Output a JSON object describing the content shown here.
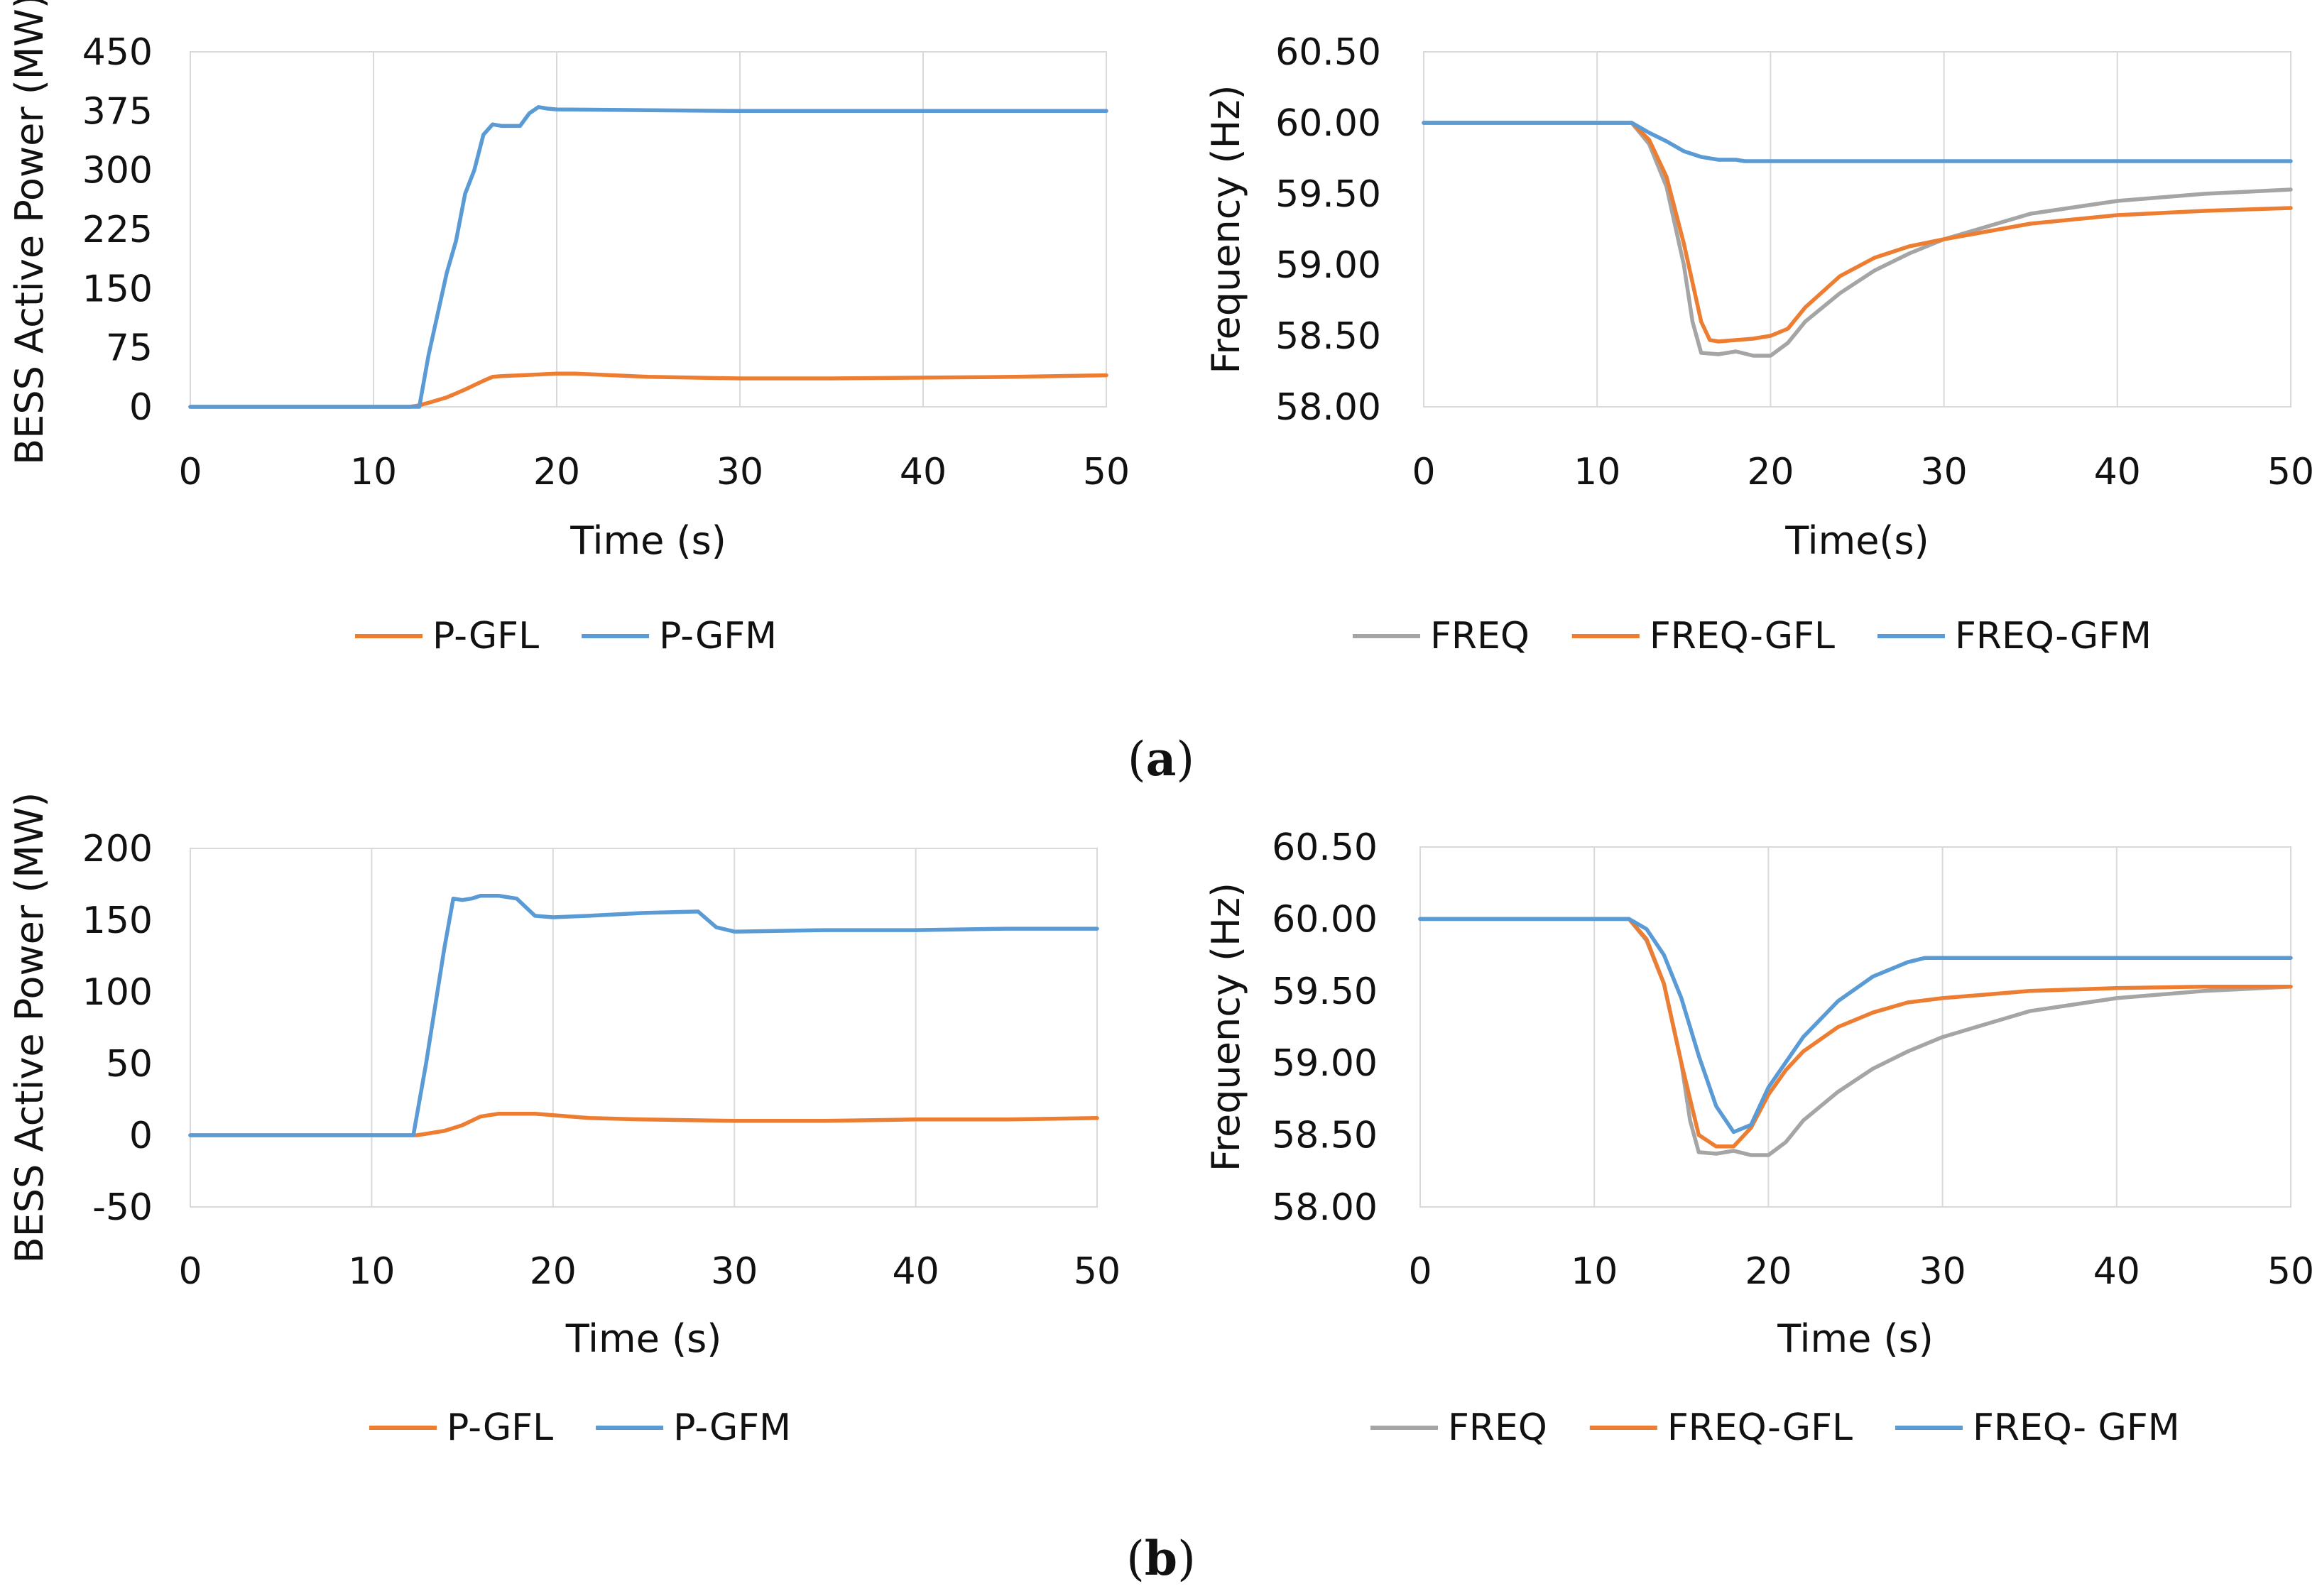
{
  "figure": {
    "panel_labels": [
      {
        "open": "(",
        "letter": "a",
        "close": ")"
      },
      {
        "open": "(",
        "letter": "b",
        "close": ")"
      }
    ]
  },
  "chart_data": [
    {
      "id": "a-power",
      "panel": "a",
      "type": "line",
      "xlabel": "Time (s)",
      "ylabel": "BESS Active Power (MW)",
      "xlim": [
        0,
        50
      ],
      "ylim": [
        0,
        450
      ],
      "xticks": [
        0,
        10,
        20,
        30,
        40,
        50
      ],
      "yticks": [
        0,
        75,
        150,
        225,
        300,
        375,
        450
      ],
      "ytick_labels": [
        "0",
        "75",
        "150",
        "225",
        "300",
        "375",
        "450"
      ],
      "grid": "vertical",
      "legend_position": "bottom",
      "series": [
        {
          "name": "P-GFL",
          "color": "#ED7D31",
          "x": [
            0,
            12,
            12.5,
            13,
            14,
            15,
            16,
            16.5,
            17,
            18,
            20,
            21,
            22,
            25,
            30,
            35,
            40,
            45,
            50
          ],
          "y": [
            0,
            0,
            2,
            5,
            12,
            22,
            33,
            38,
            39,
            40,
            42,
            42,
            41,
            38,
            36,
            36,
            37,
            38,
            40
          ]
        },
        {
          "name": "P-GFM",
          "color": "#5B9BD5",
          "x": [
            0,
            12.5,
            13,
            14,
            14.5,
            15,
            15.5,
            16,
            16.5,
            17,
            18,
            18.5,
            19,
            19.5,
            20,
            25,
            30,
            40,
            50
          ],
          "y": [
            0,
            0,
            65,
            170,
            210,
            270,
            300,
            345,
            358,
            356,
            356,
            372,
            380,
            378,
            377,
            376,
            375,
            375,
            375
          ]
        }
      ]
    },
    {
      "id": "a-freq",
      "panel": "a",
      "type": "line",
      "xlabel": "Time(s)",
      "ylabel": "Frequency (Hz)",
      "xlim": [
        0,
        50
      ],
      "ylim": [
        58,
        60.5
      ],
      "xticks": [
        0,
        10,
        20,
        30,
        40,
        50
      ],
      "yticks": [
        58,
        58.5,
        59,
        59.5,
        60,
        60.5
      ],
      "ytick_labels": [
        "58.00",
        "58.50",
        "59.00",
        "59.50",
        "60.00",
        "60.50"
      ],
      "grid": "vertical",
      "legend_position": "bottom",
      "series": [
        {
          "name": "FREQ",
          "color": "#A5A5A5",
          "x": [
            0,
            12,
            13,
            14,
            15,
            15.5,
            16,
            17,
            18,
            19,
            20,
            21,
            22,
            24,
            26,
            28,
            30,
            35,
            40,
            45,
            50
          ],
          "y": [
            60,
            60,
            59.85,
            59.55,
            59.0,
            58.6,
            58.38,
            58.37,
            58.39,
            58.36,
            58.36,
            58.45,
            58.6,
            58.8,
            58.96,
            59.08,
            59.18,
            59.36,
            59.45,
            59.5,
            59.53
          ]
        },
        {
          "name": "FREQ-GFL",
          "color": "#ED7D31",
          "x": [
            0,
            12,
            13,
            14,
            15,
            16,
            16.5,
            17,
            18,
            19,
            20,
            21,
            22,
            24,
            26,
            28,
            30,
            35,
            40,
            45,
            50
          ],
          "y": [
            60,
            60,
            59.88,
            59.62,
            59.15,
            58.6,
            58.47,
            58.46,
            58.47,
            58.48,
            58.5,
            58.55,
            58.7,
            58.92,
            59.05,
            59.13,
            59.18,
            59.29,
            59.35,
            59.38,
            59.4
          ]
        },
        {
          "name": "FREQ-GFM",
          "color": "#5B9BD5",
          "x": [
            0,
            12,
            13,
            14,
            15,
            16,
            17,
            18,
            18.5,
            19,
            20,
            30,
            40,
            50
          ],
          "y": [
            60,
            60,
            59.93,
            59.87,
            59.8,
            59.76,
            59.74,
            59.74,
            59.73,
            59.73,
            59.73,
            59.73,
            59.73,
            59.73
          ]
        }
      ]
    },
    {
      "id": "b-power",
      "panel": "b",
      "type": "line",
      "xlabel": "Time (s)",
      "ylabel": "BESS Active Power (MW)",
      "xlim": [
        0,
        50
      ],
      "ylim": [
        -50,
        200
      ],
      "xticks": [
        0,
        10,
        20,
        30,
        40,
        50
      ],
      "yticks": [
        -50,
        0,
        50,
        100,
        150,
        200
      ],
      "ytick_labels": [
        "-50",
        "0",
        "50",
        "100",
        "150",
        "200"
      ],
      "grid": "vertical",
      "legend_position": "bottom",
      "series": [
        {
          "name": "P-GFL",
          "color": "#ED7D31",
          "x": [
            0,
            12.5,
            13,
            14,
            15,
            16,
            17,
            18,
            19,
            20,
            22,
            25,
            30,
            35,
            40,
            45,
            50
          ],
          "y": [
            0,
            0,
            1,
            3,
            7,
            13,
            15,
            15,
            15,
            14,
            12,
            11,
            10,
            10,
            11,
            11,
            12
          ]
        },
        {
          "name": "P-GFM",
          "color": "#5B9BD5",
          "x": [
            0,
            12.3,
            13,
            14,
            14.5,
            15,
            15.5,
            16,
            17,
            18,
            19,
            20,
            22,
            25,
            28,
            29,
            30,
            35,
            40,
            45,
            50
          ],
          "y": [
            0,
            0,
            50,
            130,
            165,
            164,
            165,
            167,
            167,
            165,
            153,
            152,
            153,
            155,
            156,
            145,
            142,
            143,
            143,
            144,
            144
          ]
        }
      ]
    },
    {
      "id": "b-freq",
      "panel": "b",
      "type": "line",
      "xlabel": "Time (s)",
      "ylabel": "Frequency (Hz)",
      "xlim": [
        0,
        50
      ],
      "ylim": [
        58,
        60.5
      ],
      "xticks": [
        0,
        10,
        20,
        30,
        40,
        50
      ],
      "yticks": [
        58,
        58.5,
        59,
        59.5,
        60,
        60.5
      ],
      "ytick_labels": [
        "58.00",
        "58.50",
        "59.00",
        "59.50",
        "60.00",
        "60.50"
      ],
      "grid": "vertical",
      "legend_position": "bottom",
      "series": [
        {
          "name": "FREQ",
          "color": "#A5A5A5",
          "x": [
            0,
            12,
            13,
            14,
            15,
            15.5,
            16,
            17,
            18,
            19,
            20,
            21,
            22,
            24,
            26,
            28,
            30,
            35,
            40,
            45,
            50
          ],
          "y": [
            60,
            60,
            59.85,
            59.55,
            59.0,
            58.6,
            58.38,
            58.37,
            58.39,
            58.36,
            58.36,
            58.45,
            58.6,
            58.8,
            58.96,
            59.08,
            59.18,
            59.36,
            59.45,
            59.5,
            59.53
          ]
        },
        {
          "name": "FREQ-GFL",
          "color": "#ED7D31",
          "x": [
            0,
            12,
            13,
            14,
            15,
            16,
            17,
            18,
            19,
            20,
            21,
            22,
            24,
            26,
            28,
            30,
            35,
            40,
            45,
            50
          ],
          "y": [
            60,
            60,
            59.86,
            59.55,
            59.0,
            58.5,
            58.42,
            58.42,
            58.55,
            58.78,
            58.95,
            59.08,
            59.25,
            59.35,
            59.42,
            59.45,
            59.5,
            59.52,
            59.53,
            59.53
          ]
        },
        {
          "name": "FREQ- GFM",
          "color": "#5B9BD5",
          "x": [
            0,
            12,
            13,
            14,
            15,
            16,
            17,
            18,
            19,
            20,
            22,
            24,
            26,
            28,
            29,
            30,
            35,
            40,
            45,
            50
          ],
          "y": [
            60,
            60,
            59.93,
            59.75,
            59.45,
            59.05,
            58.7,
            58.52,
            58.57,
            58.83,
            59.18,
            59.43,
            59.6,
            59.7,
            59.73,
            59.73,
            59.73,
            59.73,
            59.73,
            59.73
          ]
        }
      ]
    }
  ]
}
